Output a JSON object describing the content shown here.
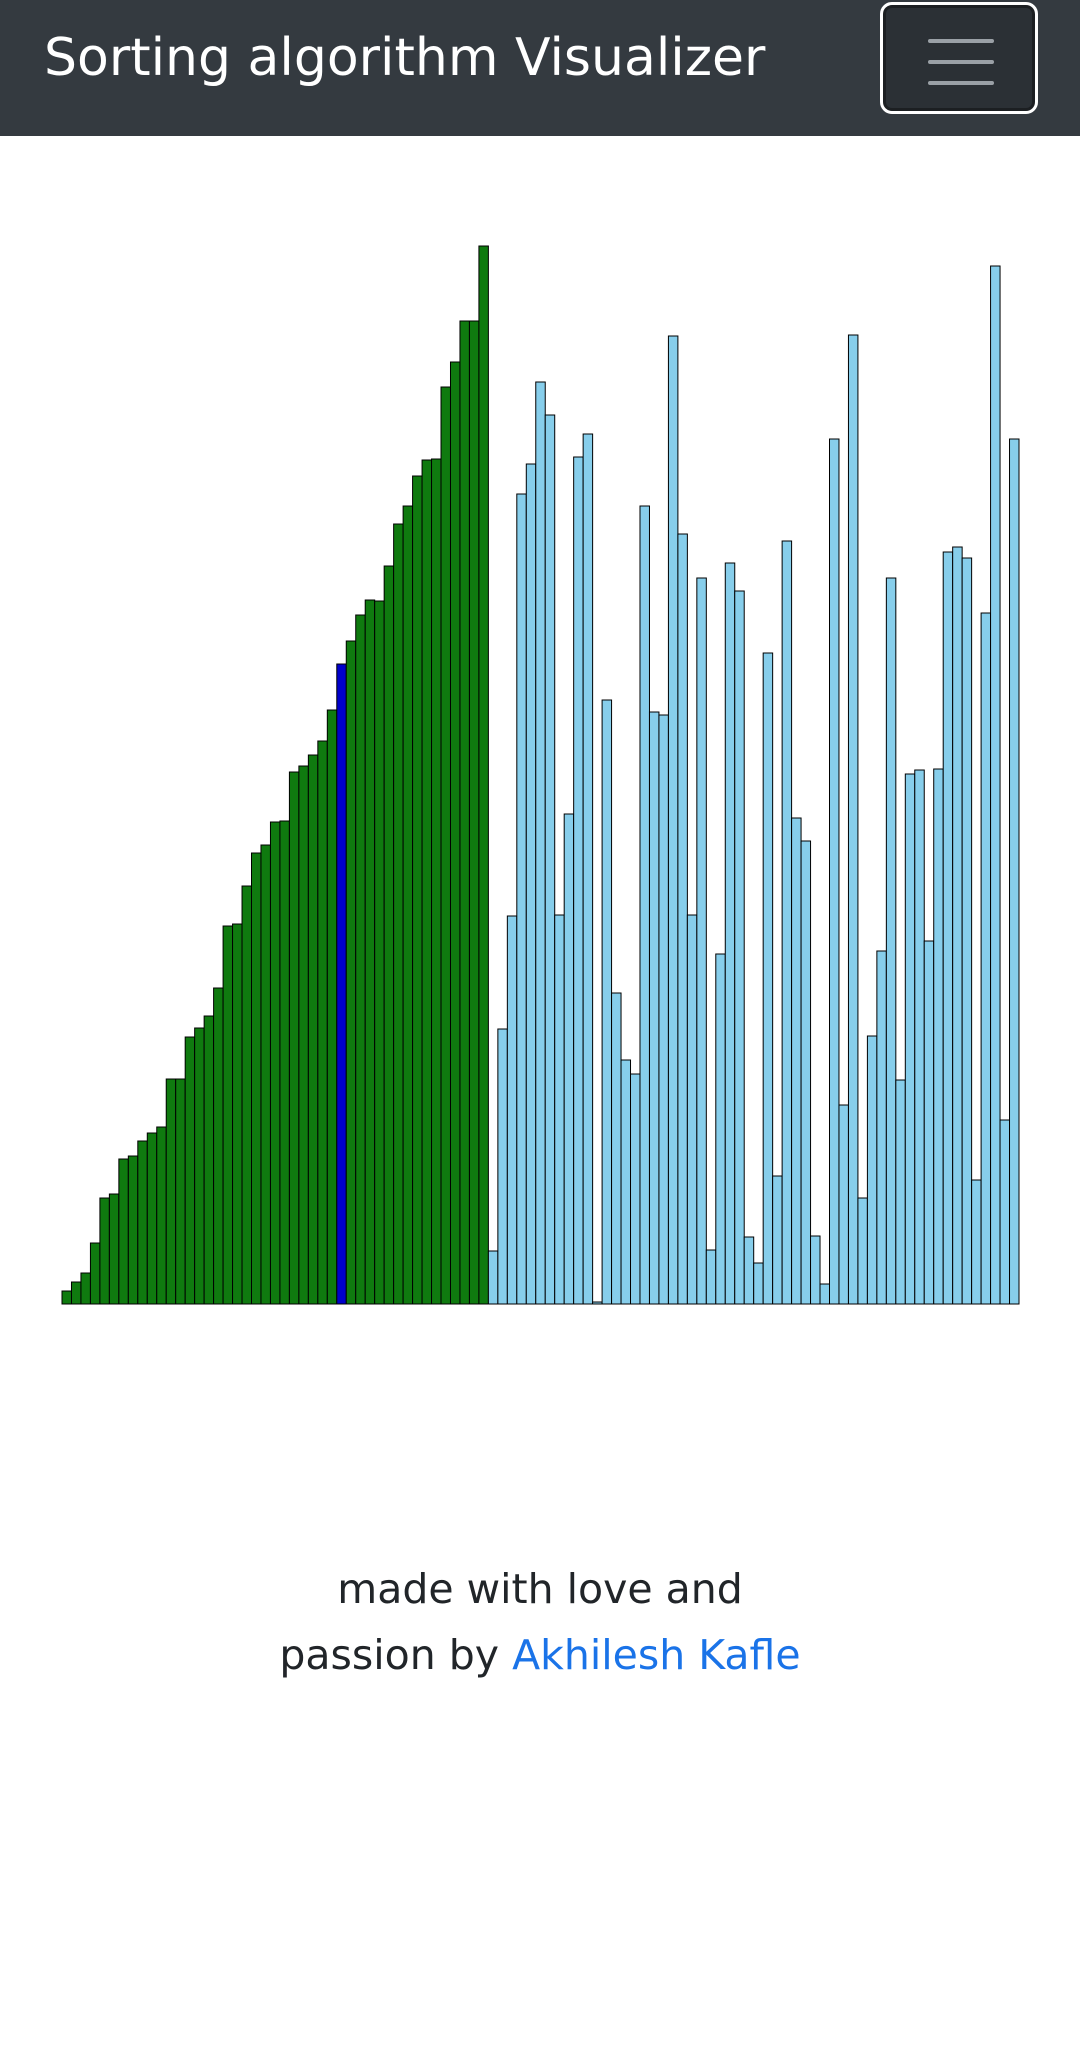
{
  "navbar": {
    "title": "Sorting algorithm Visualizer",
    "toggler_icon": "hamburger-menu-icon"
  },
  "colors": {
    "sorted": "#0f7a0f",
    "current": "#0000cc",
    "unsorted": "#87ceeb",
    "bar_border": "#000000",
    "link": "#1a73e8",
    "navbar_bg": "#343a40"
  },
  "chart_data": {
    "type": "bar",
    "title": "",
    "xlabel": "",
    "ylabel": "",
    "ylim": [
      0,
      1060
    ],
    "values": [
      13,
      22,
      31,
      61,
      106,
      110,
      145,
      148,
      163,
      171,
      177,
      225,
      225,
      267,
      276,
      288,
      316,
      378,
      380,
      418,
      451,
      459,
      482,
      483,
      532,
      538,
      549,
      563,
      594,
      640,
      663,
      689,
      704,
      703,
      738,
      780,
      798,
      828,
      844,
      845,
      917,
      942,
      983,
      983,
      1058,
      53,
      275,
      388,
      810,
      840,
      922,
      889,
      389,
      490,
      847,
      870,
      2,
      604,
      311,
      244,
      230,
      798,
      592,
      589,
      968,
      770,
      389,
      726,
      54,
      350,
      741,
      713,
      67,
      41,
      651,
      128,
      763,
      486,
      463,
      68,
      20,
      865,
      199,
      969,
      106,
      268,
      353,
      726,
      224,
      530,
      534,
      363,
      535,
      752,
      757,
      746,
      124,
      691,
      1038,
      184,
      865
    ],
    "states": [
      "sorted",
      "sorted",
      "sorted",
      "sorted",
      "sorted",
      "sorted",
      "sorted",
      "sorted",
      "sorted",
      "sorted",
      "sorted",
      "sorted",
      "sorted",
      "sorted",
      "sorted",
      "sorted",
      "sorted",
      "sorted",
      "sorted",
      "sorted",
      "sorted",
      "sorted",
      "sorted",
      "sorted",
      "sorted",
      "sorted",
      "sorted",
      "sorted",
      "sorted",
      "current",
      "sorted",
      "sorted",
      "sorted",
      "sorted",
      "sorted",
      "sorted",
      "sorted",
      "sorted",
      "sorted",
      "sorted",
      "sorted",
      "sorted",
      "sorted",
      "sorted",
      "sorted",
      "unsorted",
      "unsorted",
      "unsorted",
      "unsorted",
      "unsorted",
      "unsorted",
      "unsorted",
      "unsorted",
      "unsorted",
      "unsorted",
      "unsorted",
      "unsorted",
      "unsorted",
      "unsorted",
      "unsorted",
      "unsorted",
      "unsorted",
      "unsorted",
      "unsorted",
      "unsorted",
      "unsorted",
      "unsorted",
      "unsorted",
      "unsorted",
      "unsorted",
      "unsorted",
      "unsorted",
      "unsorted",
      "unsorted",
      "unsorted",
      "unsorted",
      "unsorted",
      "unsorted",
      "unsorted",
      "unsorted",
      "unsorted",
      "unsorted",
      "unsorted",
      "unsorted",
      "unsorted",
      "unsorted",
      "unsorted",
      "unsorted",
      "unsorted",
      "unsorted",
      "unsorted",
      "unsorted",
      "unsorted",
      "unsorted",
      "unsorted",
      "unsorted",
      "unsorted",
      "unsorted",
      "unsorted",
      "unsorted",
      "unsorted"
    ]
  },
  "footer": {
    "line1": "made with love and",
    "line2_prefix": "passion by ",
    "author_link": "Akhilesh Kafle"
  }
}
